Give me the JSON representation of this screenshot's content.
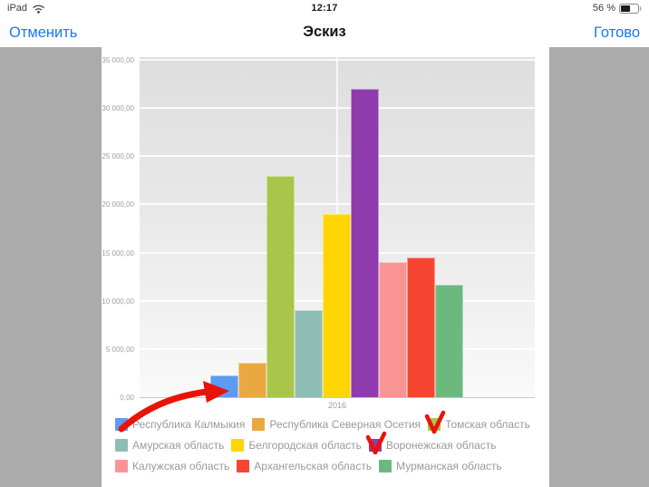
{
  "status_bar": {
    "device": "iPad",
    "time": "12:17",
    "battery_percent": "56 %",
    "battery_level": 56
  },
  "nav_bar": {
    "cancel_label": "Отменить",
    "title": "Эскиз",
    "done_label": "Готово",
    "accent_color": "#1679f9"
  },
  "chart_data": {
    "type": "bar",
    "x_categories": [
      "2016"
    ],
    "series": [
      {
        "name": "Республика Калмыкия",
        "color": "#5b9bf3",
        "value": 2300
      },
      {
        "name": "Республика Северная Осетия",
        "color": "#e9a840",
        "value": 3600
      },
      {
        "name": "Томская область",
        "color": "#a9c64a",
        "value": 23000
      },
      {
        "name": "Амурская область",
        "color": "#8dbdb5",
        "value": 9000
      },
      {
        "name": "Белгородская область",
        "color": "#ffd603",
        "value": 19000
      },
      {
        "name": "Воронежская область",
        "color": "#8d3bad",
        "value": 32000
      },
      {
        "name": "Калужская область",
        "color": "#f99494",
        "value": 14000
      },
      {
        "name": "Архангельская область",
        "color": "#f64530",
        "value": 14500
      },
      {
        "name": "Мурманская область",
        "color": "#6cb97d",
        "value": 11700
      }
    ],
    "ylim": [
      0,
      35000
    ],
    "ytick_step": 5000,
    "ytick_labels": [
      "0,00",
      "5 000,00",
      "10 000,00",
      "15 000,00",
      "20 000,00",
      "25 000,00",
      "30 000,00",
      "35 000,00"
    ],
    "grid": true,
    "legend_position": "bottom",
    "legend_columns": 3
  },
  "annotations": {
    "color": "#e91408",
    "arrow_points_to": "Республика Калмыкия",
    "checked_series": [
      "Томская область",
      "Воронежская область"
    ]
  }
}
